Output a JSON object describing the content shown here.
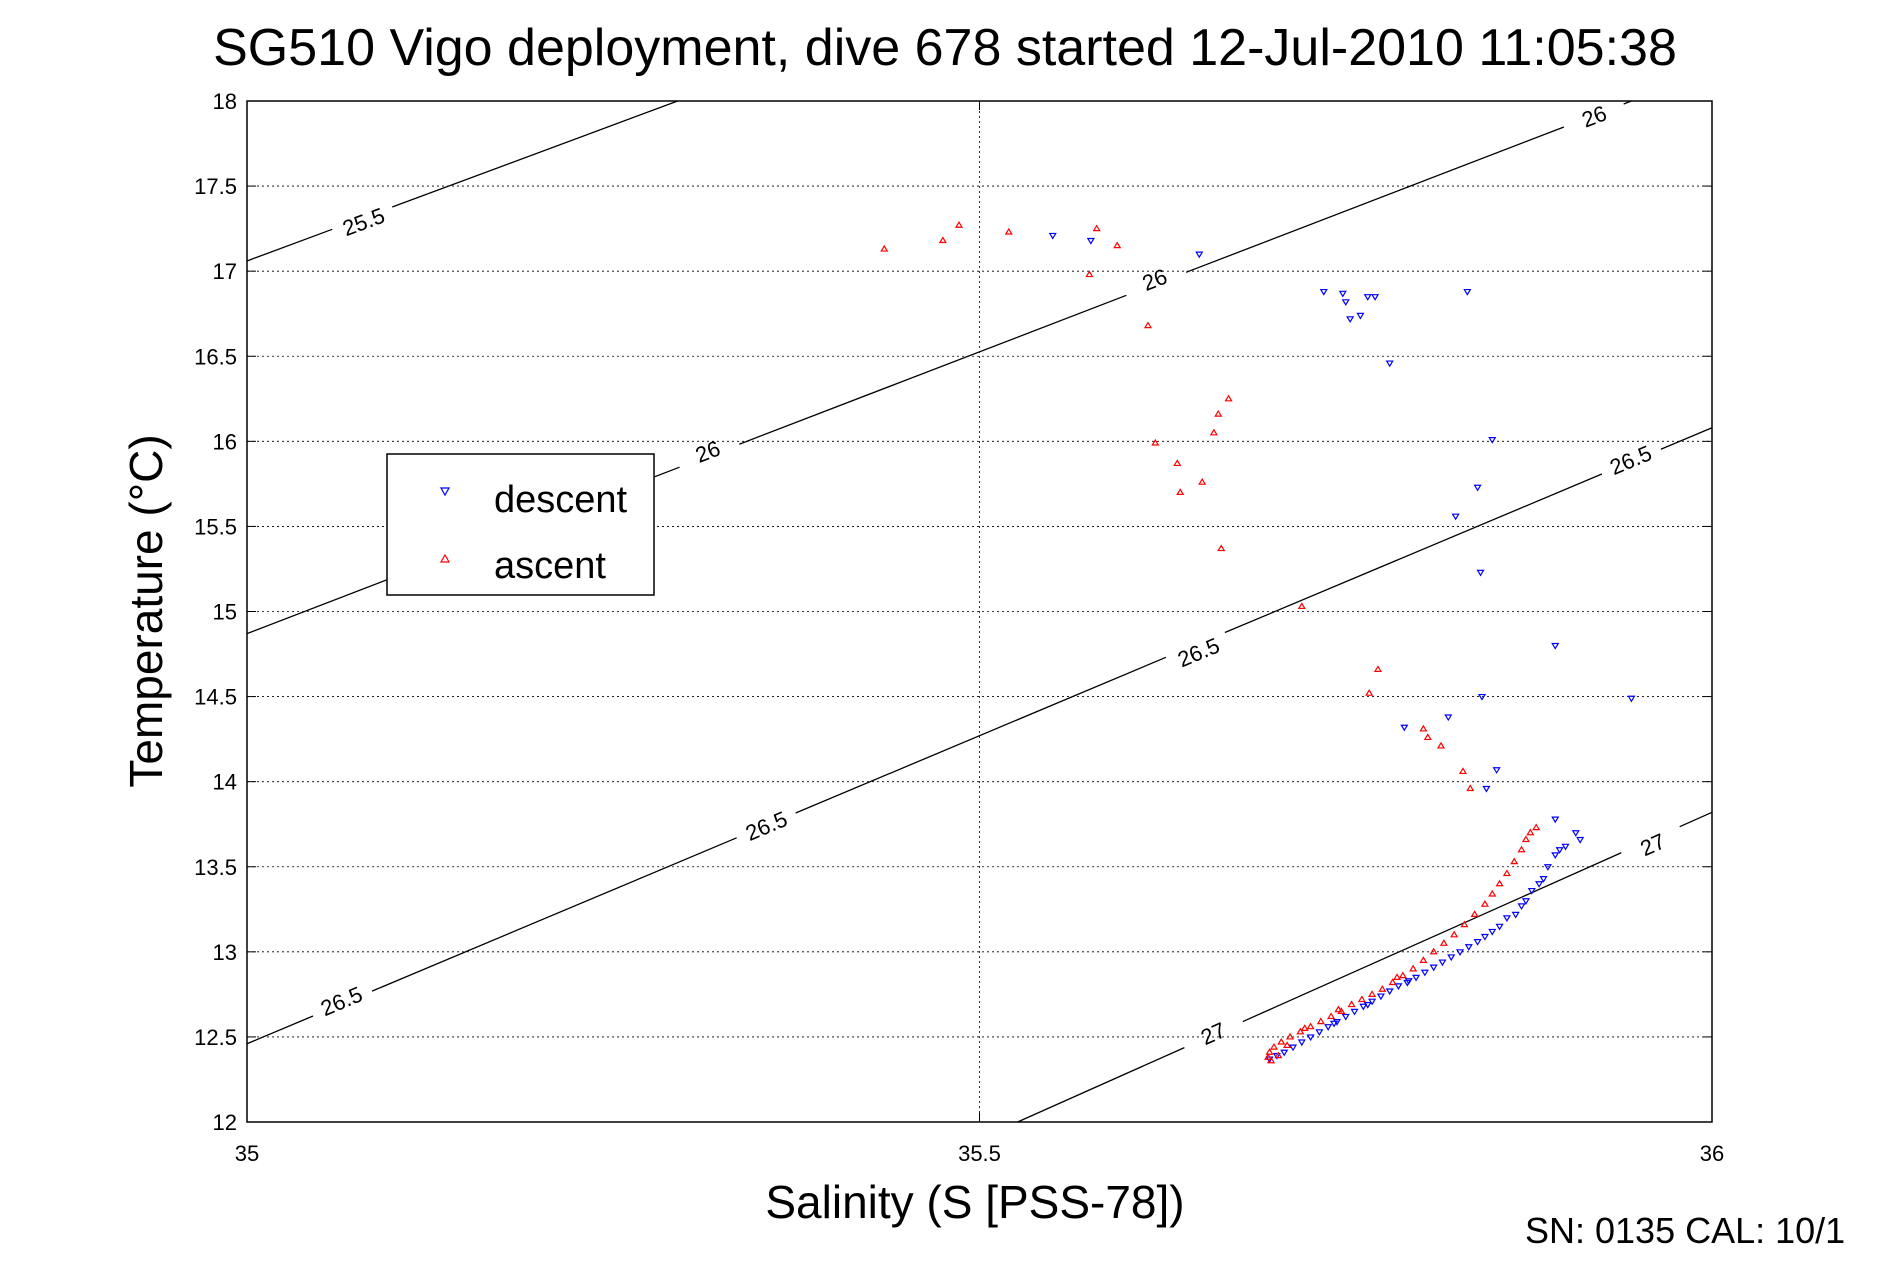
{
  "chart_data": {
    "type": "scatter",
    "title": "SG510 Vigo deployment, dive 678 started 12-Jul-2010 11:05:38",
    "xlabel": "Salinity (S [PSS-78])",
    "ylabel": "Temperature (°C)",
    "xlim": [
      35,
      36
    ],
    "ylim": [
      12,
      18
    ],
    "x_ticks": [
      "35",
      "35.5",
      "36"
    ],
    "y_ticks": [
      "12",
      "12.5",
      "13",
      "13.5",
      "14",
      "14.5",
      "15",
      "15.5",
      "16",
      "16.5",
      "17",
      "17.5",
      "18"
    ],
    "grid": true,
    "legend_position": "left-center",
    "contours": [
      {
        "label": "25.5",
        "points": [
          [
            35.0,
            17.06
          ],
          [
            35.294,
            18.0
          ]
        ],
        "label_positions": [
          [
            35.08,
            17.28
          ]
        ]
      },
      {
        "label": "26",
        "points": [
          [
            35.0,
            14.87
          ],
          [
            35.945,
            18.0
          ]
        ],
        "label_positions": [
          [
            35.315,
            15.93
          ],
          [
            35.62,
            16.94
          ],
          [
            35.92,
            17.9
          ]
        ]
      },
      {
        "label": "26.5",
        "points": [
          [
            35.0,
            12.46
          ],
          [
            36.0,
            16.08
          ]
        ],
        "label_positions": [
          [
            35.065,
            12.7
          ],
          [
            35.355,
            13.73
          ],
          [
            35.65,
            14.75
          ],
          [
            35.945,
            15.88
          ]
        ]
      },
      {
        "label": "27",
        "points": [
          [
            35.526,
            12.0
          ],
          [
            36.0,
            13.82
          ]
        ],
        "label_positions": [
          [
            35.66,
            12.51
          ],
          [
            35.96,
            13.62
          ]
        ]
      }
    ],
    "series": [
      {
        "name": "descent",
        "color": "#0000ff",
        "marker": "triangle-down",
        "points": [
          [
            35.55,
            17.21
          ],
          [
            35.576,
            17.18
          ],
          [
            35.65,
            17.1
          ],
          [
            35.735,
            16.88
          ],
          [
            35.748,
            16.87
          ],
          [
            35.75,
            16.82
          ],
          [
            35.753,
            16.72
          ],
          [
            35.76,
            16.74
          ],
          [
            35.765,
            16.85
          ],
          [
            35.77,
            16.85
          ],
          [
            35.78,
            16.46
          ],
          [
            35.833,
            16.88
          ],
          [
            35.85,
            16.01
          ],
          [
            35.84,
            15.73
          ],
          [
            35.825,
            15.56
          ],
          [
            35.842,
            15.23
          ],
          [
            35.893,
            14.8
          ],
          [
            35.945,
            14.49
          ],
          [
            35.843,
            14.5
          ],
          [
            35.79,
            14.32
          ],
          [
            35.82,
            14.38
          ],
          [
            35.853,
            14.07
          ],
          [
            35.846,
            13.96
          ],
          [
            35.893,
            13.78
          ],
          [
            35.907,
            13.7
          ],
          [
            35.91,
            13.66
          ],
          [
            35.9,
            13.62
          ],
          [
            35.896,
            13.6
          ],
          [
            35.893,
            13.57
          ],
          [
            35.888,
            13.5
          ],
          [
            35.885,
            13.43
          ],
          [
            35.882,
            13.4
          ],
          [
            35.877,
            13.36
          ],
          [
            35.873,
            13.3
          ],
          [
            35.87,
            13.27
          ],
          [
            35.866,
            13.22
          ],
          [
            35.86,
            13.2
          ],
          [
            35.855,
            13.15
          ],
          [
            35.85,
            13.12
          ],
          [
            35.845,
            13.09
          ],
          [
            35.84,
            13.06
          ],
          [
            35.834,
            13.03
          ],
          [
            35.828,
            13.0
          ],
          [
            35.822,
            12.97
          ],
          [
            35.816,
            12.94
          ],
          [
            35.81,
            12.91
          ],
          [
            35.804,
            12.88
          ],
          [
            35.798,
            12.85
          ],
          [
            35.792,
            12.82
          ],
          [
            35.786,
            12.8
          ],
          [
            35.78,
            12.77
          ],
          [
            35.774,
            12.74
          ],
          [
            35.768,
            12.71
          ],
          [
            35.762,
            12.68
          ],
          [
            35.756,
            12.65
          ],
          [
            35.75,
            12.62
          ],
          [
            35.744,
            12.59
          ],
          [
            35.738,
            12.56
          ],
          [
            35.732,
            12.53
          ],
          [
            35.726,
            12.5
          ],
          [
            35.72,
            12.47
          ],
          [
            35.714,
            12.44
          ],
          [
            35.708,
            12.41
          ],
          [
            35.703,
            12.39
          ],
          [
            35.698,
            12.37
          ],
          [
            35.742,
            12.58
          ],
          [
            35.765,
            12.69
          ],
          [
            35.793,
            12.83
          ]
        ]
      },
      {
        "name": "ascent",
        "color": "#ff0000",
        "marker": "triangle-up",
        "points": [
          [
            35.435,
            17.13
          ],
          [
            35.475,
            17.18
          ],
          [
            35.486,
            17.27
          ],
          [
            35.52,
            17.23
          ],
          [
            35.58,
            17.25
          ],
          [
            35.594,
            17.15
          ],
          [
            35.575,
            16.98
          ],
          [
            35.615,
            16.68
          ],
          [
            35.62,
            15.99
          ],
          [
            35.635,
            15.87
          ],
          [
            35.637,
            15.7
          ],
          [
            35.652,
            15.76
          ],
          [
            35.66,
            16.05
          ],
          [
            35.663,
            16.16
          ],
          [
            35.67,
            16.25
          ],
          [
            35.665,
            15.37
          ],
          [
            35.72,
            15.03
          ],
          [
            35.772,
            14.66
          ],
          [
            35.766,
            14.52
          ],
          [
            35.803,
            14.31
          ],
          [
            35.806,
            14.26
          ],
          [
            35.815,
            14.21
          ],
          [
            35.83,
            14.06
          ],
          [
            35.835,
            13.96
          ],
          [
            35.88,
            13.73
          ],
          [
            35.876,
            13.7
          ],
          [
            35.873,
            13.66
          ],
          [
            35.87,
            13.6
          ],
          [
            35.865,
            13.53
          ],
          [
            35.86,
            13.46
          ],
          [
            35.855,
            13.4
          ],
          [
            35.85,
            13.34
          ],
          [
            35.845,
            13.28
          ],
          [
            35.838,
            13.22
          ],
          [
            35.831,
            13.16
          ],
          [
            35.824,
            13.1
          ],
          [
            35.817,
            13.05
          ],
          [
            35.81,
            13.0
          ],
          [
            35.803,
            12.95
          ],
          [
            35.796,
            12.9
          ],
          [
            35.789,
            12.86
          ],
          [
            35.782,
            12.82
          ],
          [
            35.775,
            12.78
          ],
          [
            35.768,
            12.75
          ],
          [
            35.761,
            12.72
          ],
          [
            35.754,
            12.69
          ],
          [
            35.747,
            12.65
          ],
          [
            35.74,
            12.62
          ],
          [
            35.733,
            12.59
          ],
          [
            35.726,
            12.56
          ],
          [
            35.719,
            12.53
          ],
          [
            35.712,
            12.5
          ],
          [
            35.706,
            12.47
          ],
          [
            35.701,
            12.44
          ],
          [
            35.698,
            12.41
          ],
          [
            35.697,
            12.38
          ],
          [
            35.699,
            12.36
          ],
          [
            35.704,
            12.39
          ],
          [
            35.71,
            12.45
          ],
          [
            35.722,
            12.55
          ],
          [
            35.745,
            12.66
          ],
          [
            35.785,
            12.85
          ]
        ]
      }
    ]
  },
  "legend": {
    "descent_label": "descent",
    "ascent_label": "ascent"
  },
  "footer": {
    "sn_cal": "SN: 0135  CAL: 10/1"
  }
}
